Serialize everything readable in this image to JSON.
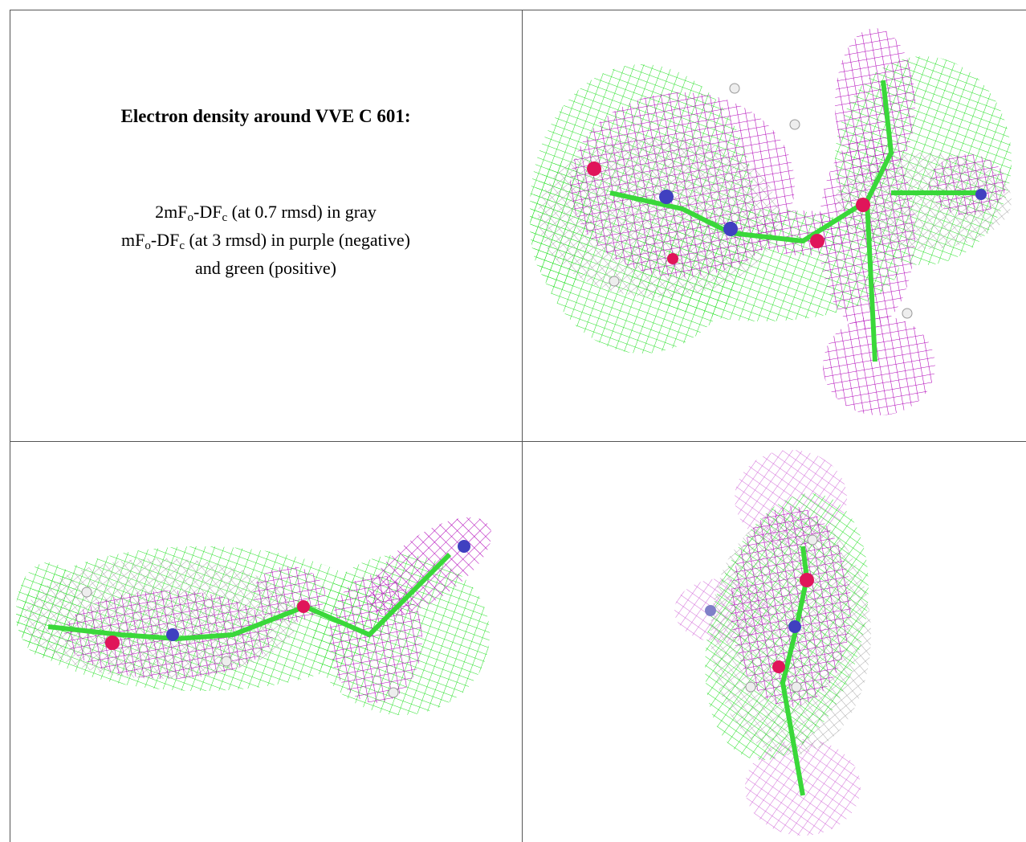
{
  "header": {
    "title": "Electron density around VVE C 601:"
  },
  "legend": {
    "lines": [
      [
        "2mF",
        "o",
        "-DF",
        "c",
        " (at 0.7 rmsd) in gray"
      ],
      [
        "mF",
        "o",
        "-DF",
        "c",
        " (at 3 rmsd) in purple (negative)"
      ],
      [
        "and green (positive)"
      ]
    ]
  }
}
